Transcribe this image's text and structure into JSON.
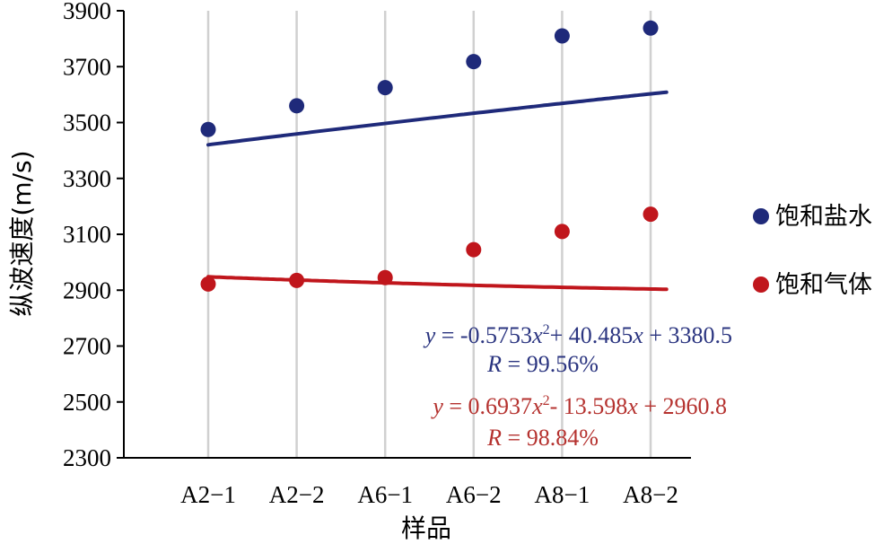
{
  "chart_data": {
    "type": "scatter",
    "xlabel": "样品",
    "ylabel": "纵波速度(m/s)",
    "categories": [
      "A2−1",
      "A2−2",
      "A6−1",
      "A6−2",
      "A8−1",
      "A8−2"
    ],
    "ylim": [
      2300,
      3900
    ],
    "yticks": [
      "2300",
      "2500",
      "2700",
      "2900",
      "3100",
      "3300",
      "3500",
      "3700",
      "3900"
    ],
    "grid": "vertical",
    "legend_position": "right",
    "series": [
      {
        "name": "饱和盐水",
        "color": "#1f2a7a",
        "values": [
          3475,
          3560,
          3625,
          3718,
          3810,
          3838
        ],
        "fit": {
          "a": -0.5753,
          "b": 40.485,
          "c": 3380.5
        },
        "equation": {
          "y_prefix": "y",
          "rhs_1": " = -0.5753",
          "x1": "x",
          "exp": "2",
          "rhs_2": "+ 40.485",
          "x2": "x",
          "rhs_3": " + 3380.5",
          "r_label": "R",
          "r_value": " = 99.56%"
        }
      },
      {
        "name": "饱和气体",
        "color": "#c0161c",
        "values": [
          2922,
          2935,
          2945,
          3045,
          3110,
          3172
        ],
        "fit": {
          "a": 0.6937,
          "b": -13.598,
          "c": 2960.8
        },
        "equation": {
          "y_prefix": "y",
          "rhs_1": " = 0.6937",
          "x1": "x",
          "exp": "2",
          "rhs_2": "- 13.598",
          "x2": "x",
          "rhs_3": " + 2960.8",
          "r_label": "R",
          "r_value": " = 98.84%"
        }
      }
    ]
  },
  "colors": {
    "grid": "#d0d0d0",
    "axis": "#000000",
    "equation_blue": "#2b3580",
    "equation_red": "#b5322f"
  }
}
